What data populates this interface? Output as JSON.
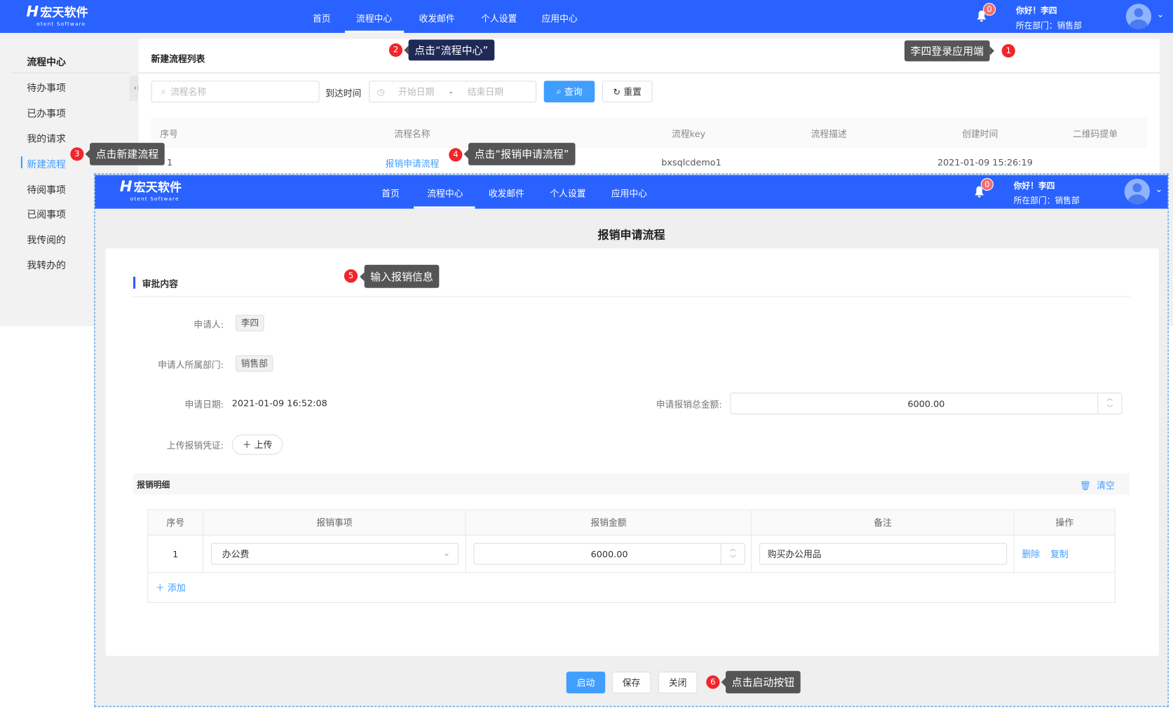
{
  "colors": {
    "brand": "#2962ff",
    "primary": "#409eff",
    "annotation_badge": "#f0262b"
  },
  "app": {
    "logo_text": "宏天软件",
    "logo_sub": "otent Software",
    "nav": [
      "首页",
      "流程中心",
      "收发邮件",
      "个人设置",
      "应用中心"
    ],
    "active_nav": "流程中心",
    "notifications": "0",
    "greeting": "你好！李四",
    "department": "所在部门：销售部"
  },
  "sidebar": {
    "title": "流程中心",
    "items": [
      "待办事项",
      "已办事项",
      "我的请求",
      "新建流程",
      "待阅事项",
      "已阅事项",
      "我传阅的",
      "我转办的"
    ],
    "active": "新建流程"
  },
  "list": {
    "title": "新建流程列表",
    "search_placeholder": "流程名称",
    "arrival_label": "到达时间",
    "start_placeholder": "开始日期",
    "range_sep": "-",
    "end_placeholder": "结束日期",
    "query_label": "查询",
    "reset_label": "重置",
    "columns": [
      "序号",
      "流程名称",
      "流程key",
      "流程描述",
      "创建时间",
      "二维码提单"
    ],
    "rows": [
      {
        "index": "1",
        "name": "报销申请流程",
        "key": "bxsqlcdemo1",
        "desc": "",
        "created": "2021-01-09 15:26:19"
      }
    ]
  },
  "form": {
    "title": "报销申请流程",
    "section": "审批内容",
    "applicant_label": "申请人:",
    "applicant": "李四",
    "dept_label": "申请人所属部门:",
    "dept": "销售部",
    "date_label": "申请日期:",
    "date": "2021-01-09 16:52:08",
    "total_label": "申请报销总金额:",
    "total": "6000.00",
    "upload_label": "上传报销凭证:",
    "upload_button": "上传",
    "detail_title": "报销明细",
    "clear_label": "清空",
    "detail_columns": [
      "序号",
      "报销事项",
      "报销金额",
      "备注",
      "操作"
    ],
    "detail_rows": [
      {
        "index": "1",
        "item": "办公费",
        "amount": "6000.00",
        "note": "购买办公用品",
        "delete": "删除",
        "copy": "复制"
      }
    ],
    "add_label": "添加",
    "start_button": "启动",
    "save_button": "保存",
    "close_button": "关闭"
  },
  "annotations": [
    {
      "n": "1",
      "text": "李四登录应用端"
    },
    {
      "n": "2",
      "text": "点击“流程中心”"
    },
    {
      "n": "3",
      "text": "点击新建流程"
    },
    {
      "n": "4",
      "text": "点击“报销申请流程”"
    },
    {
      "n": "5",
      "text": "输入报销信息"
    },
    {
      "n": "6",
      "text": "点击启动按钮"
    }
  ]
}
